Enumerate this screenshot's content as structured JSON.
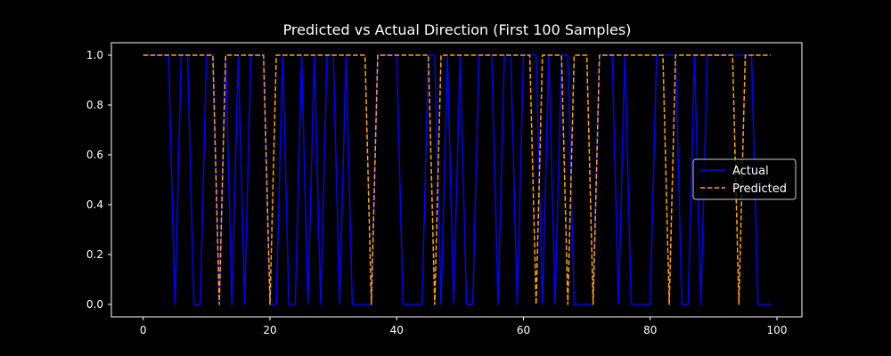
{
  "chart_data": {
    "type": "line",
    "title": "Predicted vs Actual Direction (First 100 Samples)",
    "xlabel": "",
    "ylabel": "",
    "xlim": [
      -5,
      105
    ],
    "ylim": [
      -0.05,
      1.05
    ],
    "xticks": [
      0,
      20,
      40,
      60,
      80,
      100
    ],
    "xtick_labels": [
      "0",
      "20",
      "40",
      "60",
      "80",
      "100"
    ],
    "yticks": [
      0.0,
      0.2,
      0.4,
      0.6,
      0.8,
      1.0
    ],
    "ytick_labels": [
      "0.0",
      "0.2",
      "0.4",
      "0.6",
      "0.8",
      "1.0"
    ],
    "grid": false,
    "legend_position": "center right",
    "background": "#000000",
    "x": [
      0,
      1,
      2,
      3,
      4,
      5,
      6,
      7,
      8,
      9,
      10,
      11,
      12,
      13,
      14,
      15,
      16,
      17,
      18,
      19,
      20,
      21,
      22,
      23,
      24,
      25,
      26,
      27,
      28,
      29,
      30,
      31,
      32,
      33,
      34,
      35,
      36,
      37,
      38,
      39,
      40,
      41,
      42,
      43,
      44,
      45,
      46,
      47,
      48,
      49,
      50,
      51,
      52,
      53,
      54,
      55,
      56,
      57,
      58,
      59,
      60,
      61,
      62,
      63,
      64,
      65,
      66,
      67,
      68,
      69,
      70,
      71,
      72,
      73,
      74,
      75,
      76,
      77,
      78,
      79,
      80,
      81,
      82,
      83,
      84,
      85,
      86,
      87,
      88,
      89,
      90,
      91,
      92,
      93,
      94,
      95,
      96,
      97,
      98,
      99
    ],
    "series": [
      {
        "name": "Actual",
        "color": "#0000ff",
        "style": "solid",
        "values": [
          1,
          1,
          1,
          1,
          1,
          0,
          1,
          1,
          0,
          0,
          1,
          1,
          0,
          1,
          0,
          1,
          0,
          1,
          1,
          1,
          0,
          0,
          1,
          0,
          0,
          1,
          0,
          1,
          0,
          1,
          1,
          0,
          1,
          0,
          0,
          0,
          0,
          1,
          1,
          1,
          1,
          0,
          0,
          0,
          0,
          1,
          1,
          0,
          1,
          0,
          1,
          0,
          0,
          1,
          1,
          1,
          0,
          1,
          1,
          0,
          1,
          1,
          1,
          0,
          1,
          0,
          1,
          1,
          0,
          0,
          0,
          0,
          1,
          1,
          1,
          0,
          1,
          0,
          0,
          0,
          0,
          1,
          1,
          1,
          1,
          0,
          0,
          1,
          0,
          1,
          1,
          1,
          1,
          1,
          1,
          1,
          1,
          0,
          0,
          0
        ]
      },
      {
        "name": "Predicted",
        "color": "#ffa500",
        "style": "dashed",
        "values": [
          1,
          1,
          1,
          1,
          1,
          1,
          1,
          1,
          1,
          1,
          1,
          1,
          0,
          1,
          1,
          1,
          1,
          1,
          1,
          1,
          0,
          1,
          1,
          1,
          1,
          1,
          1,
          1,
          1,
          1,
          1,
          1,
          1,
          1,
          1,
          1,
          0,
          1,
          1,
          1,
          1,
          1,
          1,
          1,
          1,
          1,
          0,
          1,
          1,
          1,
          1,
          1,
          1,
          1,
          1,
          1,
          1,
          1,
          1,
          1,
          1,
          1,
          0,
          1,
          1,
          1,
          1,
          0,
          1,
          1,
          1,
          0,
          1,
          1,
          1,
          1,
          1,
          1,
          1,
          1,
          1,
          1,
          1,
          0,
          1,
          1,
          1,
          1,
          1,
          1,
          1,
          1,
          1,
          1,
          0,
          1,
          1,
          1,
          1,
          1
        ]
      }
    ]
  },
  "legend": {
    "items": [
      {
        "label": "Actual",
        "color": "#0000ff",
        "style": "solid"
      },
      {
        "label": "Predicted",
        "color": "#ffa500",
        "style": "dashed"
      }
    ]
  }
}
